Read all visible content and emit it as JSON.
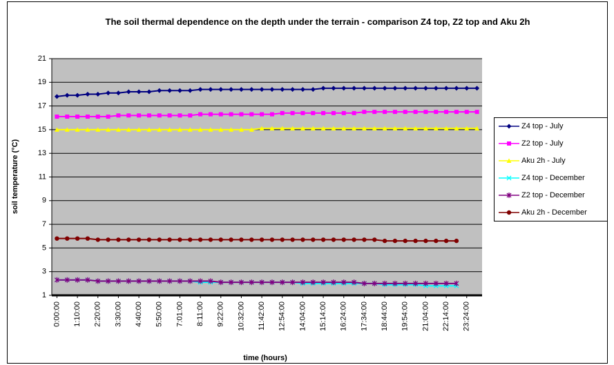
{
  "chart_data": {
    "type": "line",
    "title": "The soil thermal dependence on the depth under the terrain - comparison Z4 top, Z2 top and Aku 2h",
    "x_label": "time (hours)",
    "y_label": "soil temperature (°C)",
    "categories": [
      "0:00:00",
      null,
      "1:10:00",
      null,
      "2:20:00",
      null,
      "3:30:00",
      null,
      "4:40:00",
      null,
      "5:50:00",
      null,
      "7:01:00",
      null,
      "8:11:00",
      null,
      "9:22:00",
      null,
      "10:32:00",
      null,
      "11:42:00",
      null,
      "12:54:00",
      null,
      "14:04:00",
      null,
      "15:14:00",
      null,
      "16:24:00",
      null,
      "17:34:00",
      null,
      "18:44:00",
      null,
      "19:54:00",
      null,
      "21:04:00",
      null,
      "22:14:00",
      null,
      "23:24:00",
      null
    ],
    "ylim": [
      1,
      21
    ],
    "yticks": [
      1,
      3,
      5,
      7,
      9,
      11,
      13,
      15,
      17,
      19,
      21
    ],
    "grid": true,
    "legend": "right",
    "series": [
      {
        "name": "Z4 top - July",
        "color": "#000080",
        "marker": "diamond",
        "values": [
          17.8,
          17.9,
          17.9,
          18.0,
          18.0,
          18.1,
          18.1,
          18.2,
          18.2,
          18.2,
          18.3,
          18.3,
          18.3,
          18.3,
          18.4,
          18.4,
          18.4,
          18.4,
          18.4,
          18.4,
          18.4,
          18.4,
          18.4,
          18.4,
          18.4,
          18.4,
          18.5,
          18.5,
          18.5,
          18.5,
          18.5,
          18.5,
          18.5,
          18.5,
          18.5,
          18.5,
          18.5,
          18.5,
          18.5,
          18.5,
          18.5,
          18.5
        ]
      },
      {
        "name": "Z2 top - July",
        "color": "#ff00ff",
        "marker": "square",
        "values": [
          16.1,
          16.1,
          16.1,
          16.1,
          16.1,
          16.1,
          16.2,
          16.2,
          16.2,
          16.2,
          16.2,
          16.2,
          16.2,
          16.2,
          16.3,
          16.3,
          16.3,
          16.3,
          16.3,
          16.3,
          16.3,
          16.3,
          16.4,
          16.4,
          16.4,
          16.4,
          16.4,
          16.4,
          16.4,
          16.4,
          16.5,
          16.5,
          16.5,
          16.5,
          16.5,
          16.5,
          16.5,
          16.5,
          16.5,
          16.5,
          16.5,
          16.5
        ]
      },
      {
        "name": "Aku 2h - July",
        "color": "#ffff00",
        "marker": "triangle",
        "values": [
          15.0,
          15.0,
          15.0,
          15.0,
          15.0,
          15.0,
          15.0,
          15.0,
          15.0,
          15.0,
          15.0,
          15.0,
          15.0,
          15.0,
          15.0,
          15.0,
          15.0,
          15.0,
          15.0,
          15.0,
          15.1,
          15.1,
          15.1,
          15.1,
          15.1,
          15.1,
          15.1,
          15.1,
          15.1,
          15.1,
          15.1,
          15.1,
          15.1,
          15.1,
          15.1,
          15.1,
          15.1,
          15.1,
          15.1,
          15.1,
          15.1,
          15.1
        ]
      },
      {
        "name": "Z4 top - December",
        "color": "#00ffff",
        "marker": "x",
        "values": [
          2.3,
          2.3,
          2.3,
          2.3,
          2.2,
          2.2,
          2.2,
          2.2,
          2.2,
          2.2,
          2.2,
          2.2,
          2.2,
          2.2,
          2.1,
          2.1,
          2.1,
          2.1,
          2.1,
          2.1,
          2.1,
          2.1,
          2.1,
          2.1,
          2.0,
          2.0,
          2.0,
          2.0,
          2.0,
          2.0,
          2.0,
          2.0,
          1.9,
          1.9,
          1.9,
          1.9,
          1.8,
          1.8,
          1.8,
          1.8,
          null,
          null
        ]
      },
      {
        "name": "Z2 top - December",
        "color": "#800080",
        "marker": "star",
        "values": [
          2.3,
          2.3,
          2.3,
          2.3,
          2.2,
          2.2,
          2.2,
          2.2,
          2.2,
          2.2,
          2.2,
          2.2,
          2.2,
          2.2,
          2.2,
          2.2,
          2.1,
          2.1,
          2.1,
          2.1,
          2.1,
          2.1,
          2.1,
          2.1,
          2.1,
          2.1,
          2.1,
          2.1,
          2.1,
          2.1,
          2.0,
          2.0,
          2.0,
          2.0,
          2.0,
          2.0,
          2.0,
          2.0,
          2.0,
          2.0,
          null,
          null
        ]
      },
      {
        "name": "Aku 2h - December",
        "color": "#800000",
        "marker": "circle",
        "values": [
          5.8,
          5.8,
          5.8,
          5.8,
          5.7,
          5.7,
          5.7,
          5.7,
          5.7,
          5.7,
          5.7,
          5.7,
          5.7,
          5.7,
          5.7,
          5.7,
          5.7,
          5.7,
          5.7,
          5.7,
          5.7,
          5.7,
          5.7,
          5.7,
          5.7,
          5.7,
          5.7,
          5.7,
          5.7,
          5.7,
          5.7,
          5.7,
          5.6,
          5.6,
          5.6,
          5.6,
          5.6,
          5.6,
          5.6,
          5.6,
          null,
          null
        ]
      }
    ]
  }
}
